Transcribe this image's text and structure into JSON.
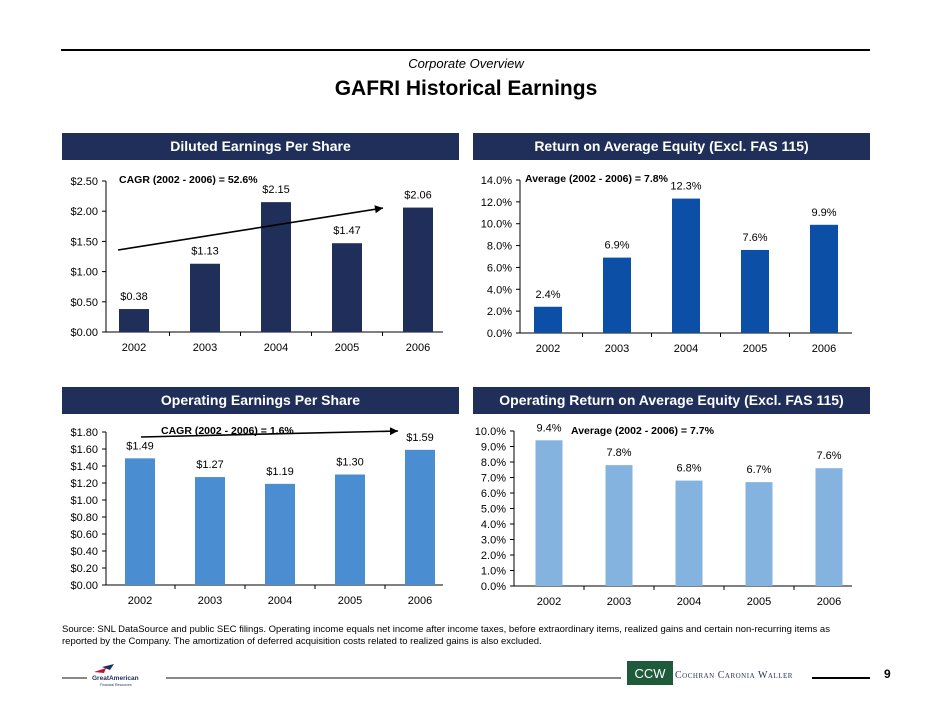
{
  "header": {
    "kicker": "Corporate Overview",
    "title": "GAFRI Historical Earnings"
  },
  "colors": {
    "header_band": "#1f2f5a",
    "navy_bar": "#1f2f5a",
    "blue_bar": "#0c4fa6",
    "mid_blue_bar": "#4a8ed1",
    "light_blue_bar": "#84b3e0"
  },
  "panels": [
    {
      "title": "Diluted Earnings Per Share"
    },
    {
      "title": "Return on Average Equity (Excl. FAS 115)"
    },
    {
      "title": "Operating Earnings Per Share"
    },
    {
      "title": "Operating Return on Average Equity (Excl. FAS 115)"
    }
  ],
  "chart_data": [
    {
      "type": "bar",
      "categories": [
        "2002",
        "2003",
        "2004",
        "2005",
        "2006"
      ],
      "values": [
        0.38,
        1.13,
        2.15,
        1.47,
        2.06
      ],
      "data_labels": [
        "$0.38",
        "$1.13",
        "$2.15",
        "$1.47",
        "$2.06"
      ],
      "y_ticks": [
        0,
        0.5,
        1.0,
        1.5,
        2.0,
        2.5
      ],
      "y_tick_labels": [
        "$0.00",
        "$0.50",
        "$1.00",
        "$1.50",
        "$2.00",
        "$2.50"
      ],
      "ylim": [
        0,
        2.5
      ],
      "annotation": "CAGR (2002 - 2006) = 52.6%",
      "trend_arrow": true,
      "color": "#1f2f5a"
    },
    {
      "type": "bar",
      "categories": [
        "2002",
        "2003",
        "2004",
        "2005",
        "2006"
      ],
      "values": [
        2.4,
        6.9,
        12.3,
        7.6,
        9.9
      ],
      "data_labels": [
        "2.4%",
        "6.9%",
        "12.3%",
        "7.6%",
        "9.9%"
      ],
      "y_ticks": [
        0,
        2,
        4,
        6,
        8,
        10,
        12,
        14
      ],
      "y_tick_labels": [
        "0.0%",
        "2.0%",
        "4.0%",
        "6.0%",
        "8.0%",
        "10.0%",
        "12.0%",
        "14.0%"
      ],
      "ylim": [
        0,
        14
      ],
      "annotation": "Average (2002 - 2006) = 7.8%",
      "trend_arrow": false,
      "color": "#0c4fa6"
    },
    {
      "type": "bar",
      "categories": [
        "2002",
        "2003",
        "2004",
        "2005",
        "2006"
      ],
      "values": [
        1.49,
        1.27,
        1.19,
        1.3,
        1.59
      ],
      "data_labels": [
        "$1.49",
        "$1.27",
        "$1.19",
        "$1.30",
        "$1.59"
      ],
      "y_ticks": [
        0,
        0.2,
        0.4,
        0.6,
        0.8,
        1.0,
        1.2,
        1.4,
        1.6,
        1.8
      ],
      "y_tick_labels": [
        "$0.00",
        "$0.20",
        "$0.40",
        "$0.60",
        "$0.80",
        "$1.00",
        "$1.20",
        "$1.40",
        "$1.60",
        "$1.80"
      ],
      "ylim": [
        0,
        1.8
      ],
      "annotation": "CAGR (2002 - 2006) = 1.6%",
      "trend_arrow": true,
      "color": "#4a8ed1"
    },
    {
      "type": "bar",
      "categories": [
        "2002",
        "2003",
        "2004",
        "2005",
        "2006"
      ],
      "values": [
        9.4,
        7.8,
        6.8,
        6.7,
        7.6
      ],
      "data_labels": [
        "9.4%",
        "7.8%",
        "6.8%",
        "6.7%",
        "7.6%"
      ],
      "y_ticks": [
        0,
        1,
        2,
        3,
        4,
        5,
        6,
        7,
        8,
        9,
        10
      ],
      "y_tick_labels": [
        "0.0%",
        "1.0%",
        "2.0%",
        "3.0%",
        "4.0%",
        "5.0%",
        "6.0%",
        "7.0%",
        "8.0%",
        "9.0%",
        "10.0%"
      ],
      "ylim": [
        0,
        10
      ],
      "annotation": "Average (2002 - 2006) = 7.7%",
      "trend_arrow": false,
      "color": "#84b3e0"
    }
  ],
  "source_note": "Source:  SNL DataSource and public SEC filings.  Operating income equals net income after income taxes, before extraordinary items, realized gains and certain non-recurring items as reported by the Company.  The amortization of deferred acquisition costs related to realized gains is also excluded.",
  "footer": {
    "page_number": "9",
    "right_logo_mark": "CCW",
    "right_brand": "Cochran Caronia Waller",
    "left_logo_text": "GreatAmerican",
    "left_logo_subtext": "Financial Resources"
  }
}
